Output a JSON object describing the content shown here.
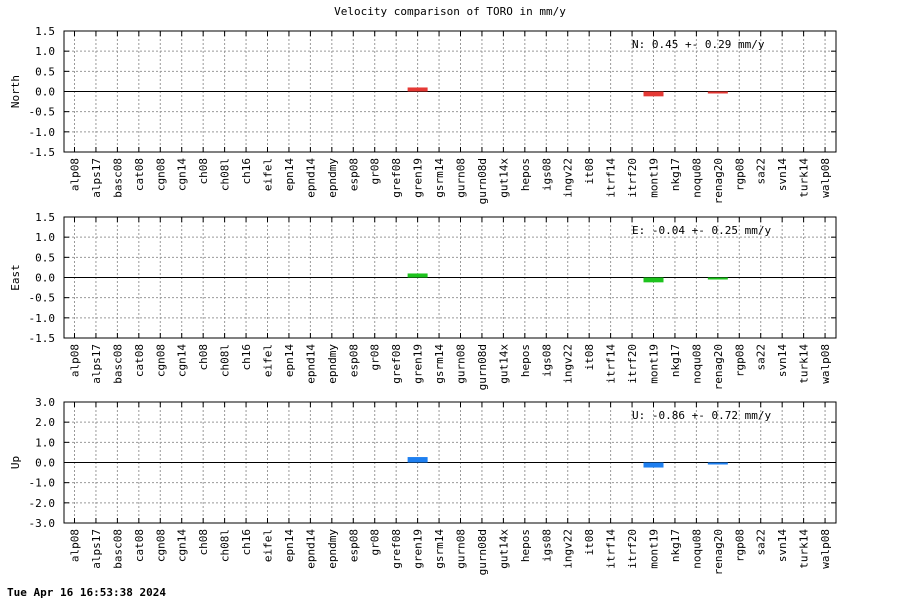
{
  "title": "Velocity comparison of TORO in mm/y",
  "footer": "Tue Apr 16 16:53:38 2024",
  "chart_data": [
    {
      "type": "bar",
      "ylabel": "North",
      "ylim": [
        -1.5,
        1.5
      ],
      "yticks": [
        "1.5",
        "1.0",
        "0.5",
        "0.0",
        "-0.5",
        "-1.0",
        "-1.5"
      ],
      "color": "#e53935",
      "annotation": "N:   0.45 +-  0.29 mm/y",
      "categories": [
        "alp08",
        "alps17",
        "basc08",
        "cat08",
        "cgn08",
        "cgn14",
        "ch08",
        "ch08l",
        "ch16",
        "eifel",
        "epn14",
        "epnd14",
        "epndmy",
        "esp08",
        "gr08",
        "gref08",
        "gren19",
        "gsrm14",
        "gurn08",
        "gurn08d",
        "gut14x",
        "hepos",
        "igs08",
        "ingv22",
        "it08",
        "itrf14",
        "itrf20",
        "mont19",
        "nkg17",
        "noqu08",
        "renag20",
        "rgp08",
        "sa22",
        "svn14",
        "turk14",
        "walp08"
      ],
      "values": [
        null,
        null,
        null,
        null,
        null,
        null,
        null,
        null,
        null,
        null,
        null,
        null,
        null,
        null,
        null,
        null,
        0.1,
        null,
        null,
        null,
        null,
        null,
        null,
        null,
        null,
        null,
        null,
        -0.12,
        null,
        null,
        0.0,
        null,
        null,
        null,
        null,
        null
      ],
      "grid": true
    },
    {
      "type": "bar",
      "ylabel": "East",
      "ylim": [
        -1.5,
        1.5
      ],
      "yticks": [
        "1.5",
        "1.0",
        "0.5",
        "0.0",
        "-0.5",
        "-1.0",
        "-1.5"
      ],
      "color": "#1ec31e",
      "annotation": "E:  -0.04 +-  0.25 mm/y",
      "categories": [
        "alp08",
        "alps17",
        "basc08",
        "cat08",
        "cgn08",
        "cgn14",
        "ch08",
        "ch08l",
        "ch16",
        "eifel",
        "epn14",
        "epnd14",
        "epndmy",
        "esp08",
        "gr08",
        "gref08",
        "gren19",
        "gsrm14",
        "gurn08",
        "gurn08d",
        "gut14x",
        "hepos",
        "igs08",
        "ingv22",
        "it08",
        "itrf14",
        "itrf20",
        "mont19",
        "nkg17",
        "noqu08",
        "renag20",
        "rgp08",
        "sa22",
        "svn14",
        "turk14",
        "walp08"
      ],
      "values": [
        null,
        null,
        null,
        null,
        null,
        null,
        null,
        null,
        null,
        null,
        null,
        null,
        null,
        null,
        null,
        null,
        0.1,
        null,
        null,
        null,
        null,
        null,
        null,
        null,
        null,
        null,
        null,
        -0.12,
        null,
        null,
        -0.03,
        null,
        null,
        null,
        null,
        null
      ],
      "grid": true
    },
    {
      "type": "bar",
      "ylabel": "Up",
      "ylim": [
        -3.0,
        3.0
      ],
      "yticks": [
        "3.0",
        "2.0",
        "1.0",
        "0.0",
        "-1.0",
        "-2.0",
        "-3.0"
      ],
      "color": "#1e7ff0",
      "annotation": "U:  -0.86 +-  0.72 mm/y",
      "categories": [
        "alp08",
        "alps17",
        "basc08",
        "cat08",
        "cgn08",
        "cgn14",
        "ch08",
        "ch08l",
        "ch16",
        "eifel",
        "epn14",
        "epnd14",
        "epndmy",
        "esp08",
        "gr08",
        "gref08",
        "gren19",
        "gsrm14",
        "gurn08",
        "gurn08d",
        "gut14x",
        "hepos",
        "igs08",
        "ingv22",
        "it08",
        "itrf14",
        "itrf20",
        "mont19",
        "nkg17",
        "noqu08",
        "renag20",
        "rgp08",
        "sa22",
        "svn14",
        "turk14",
        "walp08"
      ],
      "values": [
        null,
        null,
        null,
        null,
        null,
        null,
        null,
        null,
        null,
        null,
        null,
        null,
        null,
        null,
        null,
        null,
        0.27,
        null,
        null,
        null,
        null,
        null,
        null,
        null,
        null,
        null,
        null,
        -0.25,
        null,
        null,
        0.0,
        null,
        null,
        null,
        null,
        null
      ],
      "grid": true
    }
  ]
}
